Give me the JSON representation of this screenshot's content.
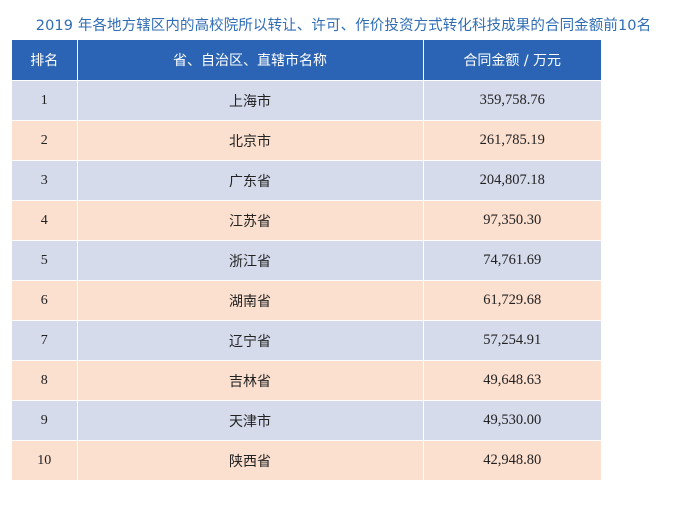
{
  "title": "2019 年各地方辖区内的高校院所以转让、许可、作价投资方式转化科技成果的合同金额前10名",
  "table": {
    "headers": [
      "排名",
      "省、自治区、直辖市名称",
      "合同金额 / 万元"
    ],
    "rows": [
      {
        "rank": "1",
        "region": "上海市",
        "amount": "359,758.76"
      },
      {
        "rank": "2",
        "region": "北京市",
        "amount": "261,785.19"
      },
      {
        "rank": "3",
        "region": "广东省",
        "amount": "204,807.18"
      },
      {
        "rank": "4",
        "region": "江苏省",
        "amount": "97,350.30"
      },
      {
        "rank": "5",
        "region": "浙江省",
        "amount": "74,761.69"
      },
      {
        "rank": "6",
        "region": "湖南省",
        "amount": "61,729.68"
      },
      {
        "rank": "7",
        "region": "辽宁省",
        "amount": "57,254.91"
      },
      {
        "rank": "8",
        "region": "吉林省",
        "amount": "49,648.63"
      },
      {
        "rank": "9",
        "region": "天津市",
        "amount": "49,530.00"
      },
      {
        "rank": "10",
        "region": "陕西省",
        "amount": "42,948.80"
      }
    ]
  },
  "colors": {
    "title": "#2f6db5",
    "header_bg": "#2b64b4",
    "row_odd": "#d6dbec",
    "row_even": "#fbdfcf"
  }
}
